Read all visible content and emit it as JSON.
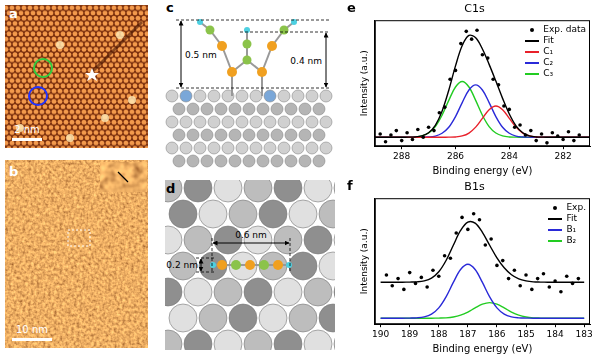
{
  "panels": {
    "a": {
      "label": "a",
      "scale_bar": "2 nm"
    },
    "b": {
      "label": "b",
      "scale_bar": "10 nm"
    },
    "c": {
      "label": "c",
      "heights": [
        "0.5 nm",
        "0.4 nm"
      ]
    },
    "d": {
      "label": "d",
      "widths": [
        "0.6 nm",
        "0.2 nm"
      ]
    }
  },
  "chart_data": [
    {
      "label": "e",
      "type": "line",
      "title": "C1s",
      "x_label": "Binding energy (eV)",
      "y_label": "Intensity (a.u.)",
      "xlim": [
        289,
        281
      ],
      "xticks": [
        288,
        286,
        284,
        282
      ],
      "ylim": [
        -8,
        105
      ],
      "yticks": [],
      "grid": false,
      "legend": "top-right",
      "tick_labels": "x",
      "series": [
        {
          "name": "Exp. data",
          "type": "scatter",
          "marker": "circle",
          "color": "#000000",
          "x": [
            288.8,
            288.6,
            288.4,
            288.2,
            288,
            287.8,
            287.6,
            287.4,
            287.2,
            287,
            286.8,
            286.6,
            286.4,
            286.2,
            286,
            285.8,
            285.6,
            285.4,
            285.2,
            285,
            284.8,
            284.6,
            284.4,
            284.2,
            284,
            283.8,
            283.6,
            283.4,
            283.2,
            283,
            282.8,
            282.6,
            282.4,
            282.2,
            282,
            281.8,
            281.6,
            281.4
          ],
          "values": [
            3,
            -4,
            2,
            6,
            -3,
            4,
            -2,
            7,
            0,
            9,
            6,
            22,
            27,
            52,
            60,
            84,
            95,
            88,
            96,
            74,
            71,
            52,
            47,
            28,
            25,
            9,
            11,
            2,
            6,
            -3,
            3,
            -5,
            4,
            1,
            -2,
            5,
            -3,
            2
          ]
        },
        {
          "name": "Fit",
          "type": "line",
          "line_style": "solid",
          "color": "#000000",
          "x": [
            289,
            288.75,
            288.5,
            288.25,
            288,
            287.75,
            287.5,
            287.25,
            287,
            286.75,
            286.5,
            286.25,
            286,
            285.75,
            285.5,
            285.25,
            285,
            284.75,
            284.5,
            284.25,
            284,
            283.75,
            283.5,
            283.25,
            283,
            282.75,
            282.5,
            282.25,
            282,
            281.75,
            281.5,
            281.25,
            281
          ],
          "values": [
            0,
            0,
            0,
            0,
            0,
            0.1,
            0.3,
            1.3,
            4.1,
            10.7,
            23.4,
            42.2,
            64.0,
            82.3,
            91.3,
            89.2,
            79.2,
            65.4,
            50.4,
            34.9,
            20.9,
            10.3,
            4.1,
            1.3,
            0.3,
            0.1,
            0,
            0,
            0,
            0,
            0,
            0,
            0
          ]
        },
        {
          "name": "C₁",
          "type": "line",
          "line_style": "solid",
          "color": "#e8202a",
          "x": [
            289,
            288.75,
            288.5,
            288.25,
            288,
            287.75,
            287.5,
            287.25,
            287,
            286.75,
            286.5,
            286.25,
            286,
            285.75,
            285.5,
            285.25,
            285,
            284.75,
            284.5,
            284.25,
            284,
            283.75,
            283.5,
            283.25,
            283,
            282.75,
            282.5,
            282.25,
            282,
            281.75,
            281.5,
            281.25,
            281
          ],
          "values": [
            0,
            0,
            0,
            0,
            0,
            0,
            0,
            0,
            0,
            0,
            0,
            0.1,
            0.3,
            1.2,
            3.8,
            9.1,
            17.0,
            24.7,
            28,
            24.7,
            17.0,
            9.1,
            3.8,
            1.2,
            0.3,
            0.1,
            0,
            0,
            0,
            0,
            0,
            0,
            0
          ]
        },
        {
          "name": "C₂",
          "type": "line",
          "line_style": "solid",
          "color": "#2a2ad8",
          "x": [
            289,
            288.75,
            288.5,
            288.25,
            288,
            287.75,
            287.5,
            287.25,
            287,
            286.75,
            286.5,
            286.25,
            286,
            285.75,
            285.5,
            285.25,
            285,
            284.75,
            284.5,
            284.25,
            284,
            283.75,
            283.5,
            283.25,
            283,
            282.75,
            282.5,
            282.25,
            282,
            281.75,
            281.5,
            281.25,
            281
          ],
          "values": [
            0,
            0,
            0,
            0,
            0,
            0,
            0,
            0.1,
            0.3,
            1.1,
            3.6,
            9.0,
            18.6,
            31.1,
            42.4,
            47,
            42.4,
            31.1,
            18.6,
            9.0,
            3.6,
            1.1,
            0.3,
            0.1,
            0,
            0,
            0,
            0,
            0,
            0,
            0,
            0,
            0
          ]
        },
        {
          "name": "C₃",
          "type": "line",
          "line_style": "solid",
          "color": "#22cc22",
          "x": [
            289,
            288.75,
            288.5,
            288.25,
            288,
            287.75,
            287.5,
            287.25,
            287,
            286.75,
            286.5,
            286.25,
            286,
            285.75,
            285.5,
            285.25,
            285,
            284.75,
            284.5,
            284.25,
            284,
            283.75,
            283.5,
            283.25,
            283,
            282.75,
            282.5,
            282.25,
            282,
            281.75,
            281.5,
            281.25,
            281
          ],
          "values": [
            0,
            0,
            0,
            0,
            0,
            0.1,
            0.3,
            1.2,
            3.8,
            9.6,
            19.8,
            33.1,
            45.1,
            50,
            45.1,
            33.1,
            19.8,
            9.6,
            3.8,
            1.2,
            0.3,
            0.1,
            0,
            0,
            0,
            0,
            0,
            0,
            0,
            0,
            0,
            0,
            0
          ]
        }
      ]
    },
    {
      "label": "f",
      "type": "line",
      "title": "B1s",
      "x_label": "Binding energy (eV)",
      "y_label": "Intensity (a.u.)",
      "xlim": [
        190.2,
        182.8
      ],
      "xticks": [
        190,
        189,
        188,
        187,
        186,
        185,
        184,
        183
      ],
      "ylim": [
        -5,
        100
      ],
      "yticks": [],
      "grid": false,
      "legend": "top-right",
      "tick_labels": "x",
      "series": [
        {
          "name": "Exp.",
          "type": "scatter",
          "marker": "circle",
          "color": "#000000",
          "x": [
            189.8,
            189.6,
            189.4,
            189.2,
            189,
            188.8,
            188.6,
            188.4,
            188.2,
            188,
            187.8,
            187.6,
            187.4,
            187.2,
            187,
            186.8,
            186.6,
            186.4,
            186.2,
            186,
            185.8,
            185.6,
            185.4,
            185.2,
            185,
            184.8,
            184.6,
            184.4,
            184.2,
            184,
            183.8,
            183.6,
            183.4,
            183.2
          ],
          "values": [
            36,
            27,
            33,
            24,
            38,
            29,
            34,
            26,
            40,
            35,
            52,
            50,
            71,
            84,
            74,
            87,
            82,
            61,
            66,
            44,
            48,
            33,
            40,
            27,
            36,
            24,
            33,
            37,
            26,
            31,
            22,
            35,
            29,
            33
          ]
        },
        {
          "name": "Fit",
          "type": "line",
          "line_style": "solid",
          "color": "#000000",
          "x": [
            190,
            189.75,
            189.5,
            189.25,
            189,
            188.75,
            188.5,
            188.25,
            188,
            187.75,
            187.5,
            187.25,
            187,
            186.75,
            186.5,
            186.25,
            186,
            185.75,
            185.5,
            185.25,
            185,
            184.75,
            184.5,
            184.25,
            184,
            183.75,
            183.5,
            183.25,
            183
          ],
          "values": [
            30,
            30,
            30,
            30,
            30.1,
            30.3,
            31.1,
            33.4,
            38.7,
            48.1,
            60.8,
            73.1,
            80.1,
            79.2,
            71.5,
            60.8,
            50.3,
            42.0,
            36.2,
            32.8,
            31.1,
            30.3,
            30.1,
            30,
            30,
            30,
            30,
            30,
            30
          ]
        },
        {
          "name": "B₁",
          "type": "line",
          "line_style": "solid",
          "color": "#2a2ad8",
          "x": [
            190,
            189.75,
            189.5,
            189.25,
            189,
            188.75,
            188.5,
            188.25,
            188,
            187.75,
            187.5,
            187.25,
            187,
            186.75,
            186.5,
            186.25,
            186,
            185.75,
            185.5,
            185.25,
            185,
            184.75,
            184.5,
            184.25,
            184,
            183.75,
            183.5,
            183.25,
            183
          ],
          "values": [
            0,
            0,
            0,
            0,
            0.1,
            0.3,
            1.1,
            3.4,
            8.6,
            17.8,
            29.8,
            40.6,
            45,
            40.6,
            29.8,
            17.8,
            8.6,
            3.4,
            1.1,
            0.3,
            0.1,
            0,
            0,
            0,
            0,
            0,
            0,
            0,
            0
          ]
        },
        {
          "name": "B₂",
          "type": "line",
          "line_style": "solid",
          "color": "#22cc22",
          "x": [
            190,
            189.75,
            189.5,
            189.25,
            189,
            188.75,
            188.5,
            188.25,
            188,
            187.75,
            187.5,
            187.25,
            187,
            186.75,
            186.5,
            186.25,
            186,
            185.75,
            185.5,
            185.25,
            185,
            184.75,
            184.5,
            184.25,
            184,
            183.75,
            183.5,
            183.25,
            183
          ],
          "values": [
            0,
            0,
            0,
            0,
            0,
            0,
            0,
            0,
            0.1,
            0.3,
            1.0,
            2.5,
            5.1,
            8.6,
            11.7,
            13,
            11.7,
            8.6,
            5.1,
            2.5,
            1.0,
            0.3,
            0.1,
            0,
            0,
            0,
            0,
            0,
            0
          ]
        }
      ]
    }
  ]
}
